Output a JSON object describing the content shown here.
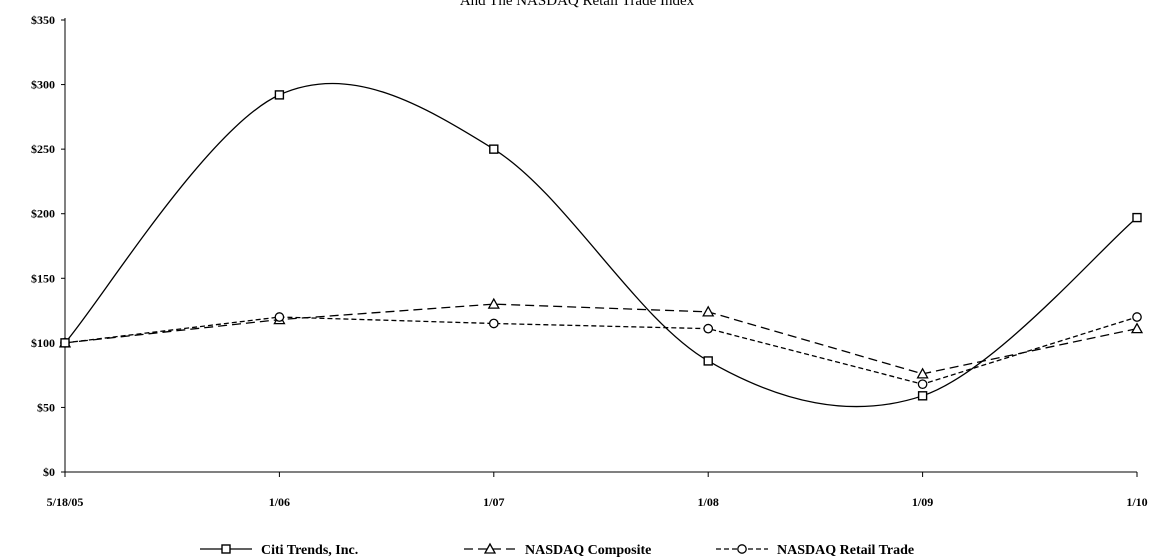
{
  "chart_data": {
    "type": "line",
    "title": "And The NASDAQ Retail Trade Index",
    "categories": [
      "5/18/05",
      "1/06",
      "1/07",
      "1/08",
      "1/09",
      "1/10"
    ],
    "y_ticks": [
      "$0",
      "$50",
      "$100",
      "$150",
      "$200",
      "$250",
      "$300",
      "$350"
    ],
    "ylim": [
      0,
      350
    ],
    "xlabel": "",
    "ylabel": "",
    "grid": false,
    "legend_position": "bottom",
    "series": [
      {
        "name": "Citi Trends, Inc.",
        "values": [
          100,
          292,
          250,
          86,
          59,
          197
        ],
        "marker": "square",
        "dash": "solid",
        "smooth": true,
        "color": "#000000"
      },
      {
        "name": "NASDAQ Composite",
        "values": [
          100,
          118,
          130,
          124,
          76,
          111
        ],
        "marker": "triangle",
        "dash": "dashed",
        "smooth": false,
        "color": "#000000"
      },
      {
        "name": "NASDAQ Retail Trade",
        "values": [
          100,
          120,
          115,
          111,
          68,
          120
        ],
        "marker": "circle",
        "dash": "short-dashed",
        "smooth": false,
        "color": "#000000"
      }
    ]
  }
}
